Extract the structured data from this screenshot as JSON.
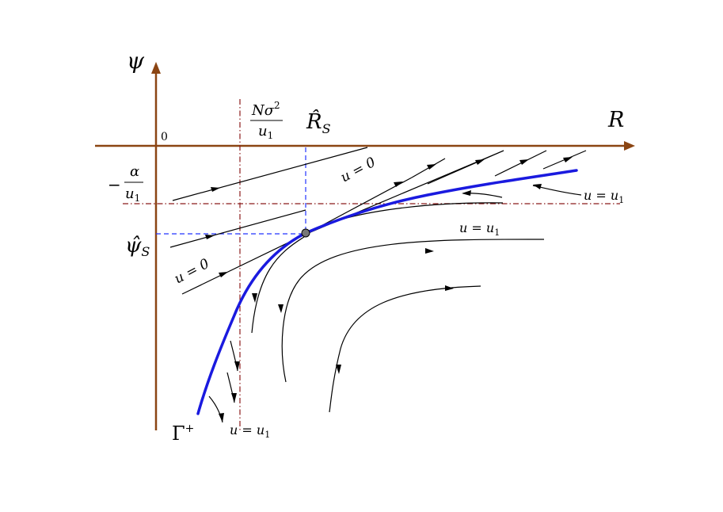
{
  "axes": {
    "y_label": "ψ",
    "x_label": "R",
    "origin_label": "0"
  },
  "labels": {
    "n_sigma_num_main": "Nσ",
    "n_sigma_num_sup": "2",
    "n_sigma_den_main": "u",
    "n_sigma_den_sub": "1",
    "alpha_minus": "−",
    "alpha_num": "α",
    "alpha_den_main": "u",
    "alpha_den_sub": "1",
    "r_hat_main": "R̂",
    "r_hat_sub": "S",
    "psi_hat_main": "ψ̂",
    "psi_hat_sub": "S",
    "gamma_main": "Γ",
    "gamma_sup": "+"
  },
  "curve_labels": {
    "u0_upper": "u = 0",
    "u0_lower": "u = 0",
    "u1_right_main": "u = u",
    "u1_right_sub": "1",
    "u1_mid_main": "u = u",
    "u1_mid_sub": "1",
    "u1_bottom_main": "u = u",
    "u1_bottom_sub": "1"
  },
  "colors": {
    "axis": "#8B4513",
    "dashdot": "#8B1A1A",
    "dashed": "#2233ff",
    "manifold": "#1a1adf",
    "equilibrium": "#777777"
  }
}
